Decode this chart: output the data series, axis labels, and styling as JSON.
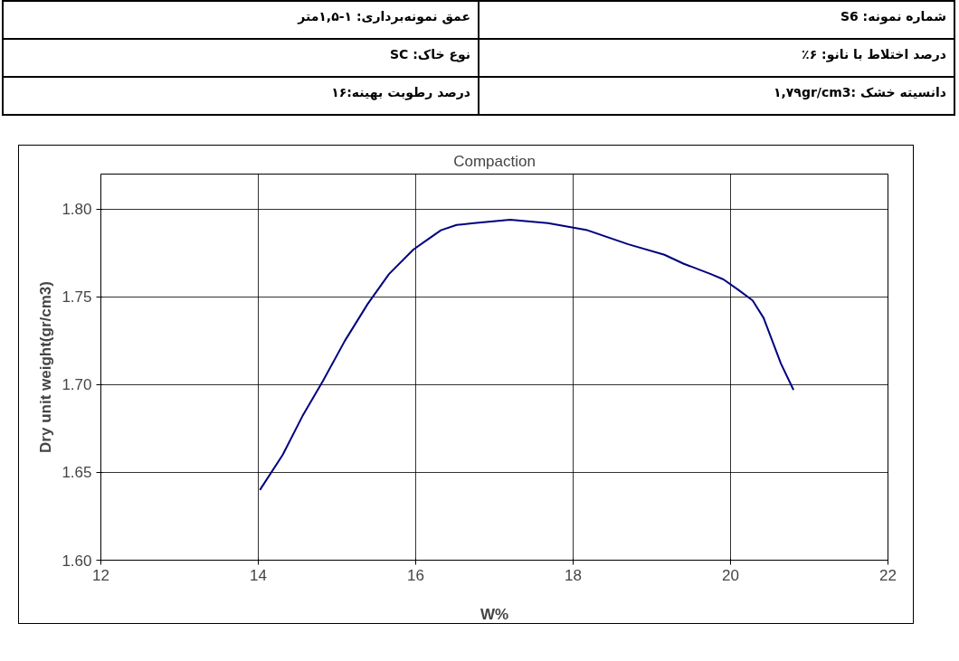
{
  "chart_data": {
    "type": "line",
    "title": "Compaction",
    "xlabel": "W%",
    "ylabel": "Dry unit weight(gr/cm3)",
    "annotations": [
      "شماره نمونه: S6",
      "عمق نمونه‌برداری: ۱-۱,۵متر",
      "درصد اختلاط با نانو: ۶٪",
      "نوع خاک: SC",
      "دانسیته خشک :۱,۷۹gr/cm3",
      "درصد رطوبت بهینه:۱۶"
    ],
    "xlim": [
      12,
      22
    ],
    "xticks": [
      12,
      14,
      16,
      18,
      20,
      22
    ],
    "ylim": [
      1.6,
      1.82
    ],
    "yticks": [
      {
        "value": 1.6,
        "label": "1.60"
      },
      {
        "value": 1.65,
        "label": "1.65"
      },
      {
        "value": 1.7,
        "label": "1.70"
      },
      {
        "value": 1.75,
        "label": "1.75"
      },
      {
        "value": 1.8,
        "label": "1.80"
      }
    ],
    "grid": true,
    "marker": "none",
    "line_style": "solid",
    "series": [
      {
        "color": "#000080",
        "x": [
          14.02,
          14.31,
          14.56,
          14.82,
          15.1,
          15.39,
          15.66,
          15.97,
          16.16,
          16.32,
          16.52,
          16.74,
          17.2,
          17.68,
          18.18,
          18.7,
          19.16,
          19.4,
          19.75,
          19.91,
          20.1,
          20.28,
          20.42,
          20.64,
          20.8
        ],
        "values": [
          1.64,
          1.66,
          1.682,
          1.702,
          1.725,
          1.746,
          1.763,
          1.777,
          1.783,
          1.788,
          1.791,
          1.792,
          1.794,
          1.792,
          1.788,
          1.78,
          1.774,
          1.769,
          1.763,
          1.76,
          1.754,
          1.748,
          1.738,
          1.712,
          1.697
        ]
      }
    ]
  }
}
